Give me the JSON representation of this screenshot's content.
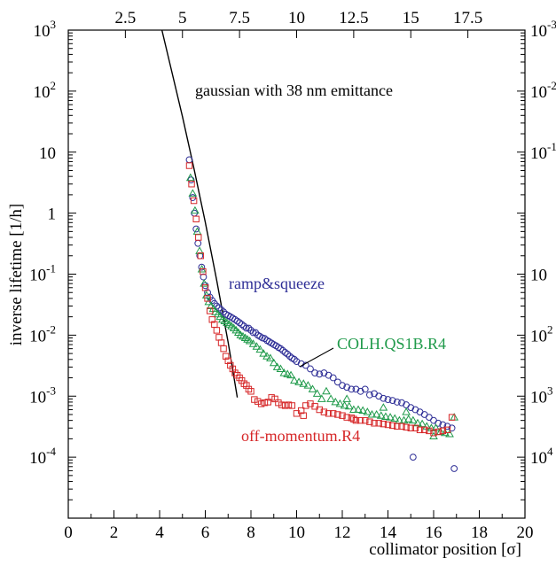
{
  "chart_data": {
    "type": "scatter",
    "xlabel": "collimator position [σ]",
    "ylabel": "inverse lifetime [1/h]",
    "x_range": [
      0,
      20
    ],
    "y_range": [
      1e-05,
      1000
    ],
    "y_scale": "log",
    "grid": false,
    "x_ticks": [
      "0",
      "2",
      "4",
      "6",
      "8",
      "10",
      "12",
      "14",
      "16",
      "18",
      "20"
    ],
    "x_tick_values": [
      0,
      2,
      4,
      6,
      8,
      10,
      12,
      14,
      16,
      18,
      20
    ],
    "y_tick_values": [
      1000,
      100,
      10,
      1,
      0.1,
      0.01,
      0.001,
      0.0001
    ],
    "y_ticks": [
      {
        "base": "10",
        "exp": "3"
      },
      {
        "base": "10",
        "exp": "2"
      },
      {
        "base": "10",
        "exp": ""
      },
      {
        "base": "1",
        "exp": ""
      },
      {
        "base": "10",
        "exp": "-1"
      },
      {
        "base": "10",
        "exp": "-2"
      },
      {
        "base": "10",
        "exp": "-3"
      },
      {
        "base": "10",
        "exp": "-4"
      }
    ],
    "top_ticks": [
      "2.5",
      "5",
      "7.5",
      "10",
      "12.5",
      "15",
      "17.5"
    ],
    "top_tick_values": [
      2.5,
      5,
      7.5,
      10,
      12.5,
      15,
      17.5
    ],
    "right_ticks": [
      {
        "base": "10",
        "exp": "-3"
      },
      {
        "base": "10",
        "exp": "-2"
      },
      {
        "base": "10",
        "exp": "-1"
      },
      {
        "base": "10",
        "exp": ""
      },
      {
        "base": "10",
        "exp": "2"
      },
      {
        "base": "10",
        "exp": "3"
      },
      {
        "base": "10",
        "exp": "4"
      }
    ],
    "right_tick_values": [
      1000,
      100,
      10,
      0.1,
      0.01,
      0.001,
      0.0001
    ],
    "annotations": {
      "gaussian": "gaussian with 38 nm emittance",
      "ramp": "ramp&squeeze",
      "colh": "COLH.QS1B.R4",
      "offm": "off-momentum.R4"
    },
    "gaussian_curve": [
      [
        4.1,
        1000
      ],
      [
        4.5,
        234
      ],
      [
        5.0,
        38
      ],
      [
        5.5,
        5.5
      ],
      [
        6.0,
        0.71
      ],
      [
        6.5,
        0.079
      ],
      [
        7.0,
        0.0076
      ],
      [
        7.4,
        0.00095
      ]
    ],
    "series": [
      {
        "marker": "circle",
        "color": "#2e2e96",
        "points": [
          [
            5.3,
            7.5
          ],
          [
            5.38,
            3.5
          ],
          [
            5.45,
            1.8
          ],
          [
            5.52,
            1.0
          ],
          [
            5.6,
            0.55
          ],
          [
            5.68,
            0.32
          ],
          [
            5.76,
            0.2
          ],
          [
            5.84,
            0.13
          ],
          [
            5.92,
            0.09
          ],
          [
            6.0,
            0.065
          ],
          [
            6.1,
            0.05
          ],
          [
            6.2,
            0.042
          ],
          [
            6.3,
            0.037
          ],
          [
            6.4,
            0.033
          ],
          [
            6.5,
            0.03
          ],
          [
            6.6,
            0.028
          ],
          [
            6.7,
            0.026
          ],
          [
            6.8,
            0.024
          ],
          [
            6.9,
            0.022
          ],
          [
            7.0,
            0.021
          ],
          [
            7.1,
            0.02
          ],
          [
            7.2,
            0.019
          ],
          [
            7.3,
            0.018
          ],
          [
            7.4,
            0.017
          ],
          [
            7.5,
            0.016
          ],
          [
            7.6,
            0.015
          ],
          [
            7.7,
            0.014
          ],
          [
            7.8,
            0.013
          ],
          [
            7.9,
            0.013
          ],
          [
            8.0,
            0.012
          ],
          [
            8.1,
            0.011
          ],
          [
            8.2,
            0.011
          ],
          [
            8.3,
            0.01
          ],
          [
            8.4,
            0.0095
          ],
          [
            8.5,
            0.009
          ],
          [
            8.6,
            0.0088
          ],
          [
            8.7,
            0.0082
          ],
          [
            8.8,
            0.0078
          ],
          [
            8.9,
            0.0074
          ],
          [
            9.0,
            0.007
          ],
          [
            9.1,
            0.0067
          ],
          [
            9.2,
            0.0063
          ],
          [
            9.3,
            0.006
          ],
          [
            9.4,
            0.0056
          ],
          [
            9.5,
            0.0052
          ],
          [
            9.6,
            0.0049
          ],
          [
            9.7,
            0.0045
          ],
          [
            9.8,
            0.0042
          ],
          [
            9.9,
            0.004
          ],
          [
            10.0,
            0.0037
          ],
          [
            10.2,
            0.0034
          ],
          [
            10.4,
            0.0032
          ],
          [
            10.6,
            0.0028
          ],
          [
            10.8,
            0.0024
          ],
          [
            11.0,
            0.0023
          ],
          [
            11.2,
            0.0024
          ],
          [
            11.4,
            0.0022
          ],
          [
            11.6,
            0.002
          ],
          [
            11.8,
            0.0017
          ],
          [
            12.0,
            0.0015
          ],
          [
            12.2,
            0.0014
          ],
          [
            12.4,
            0.0013
          ],
          [
            12.6,
            0.0013
          ],
          [
            12.8,
            0.0012
          ],
          [
            13.0,
            0.0013
          ],
          [
            13.2,
            0.00105
          ],
          [
            13.4,
            0.0011
          ],
          [
            13.6,
            0.001
          ],
          [
            13.8,
            0.00092
          ],
          [
            14.0,
            0.00088
          ],
          [
            14.2,
            0.00085
          ],
          [
            14.4,
            0.0008
          ],
          [
            14.6,
            0.00078
          ],
          [
            14.8,
            0.00072
          ],
          [
            15.0,
            0.00065
          ],
          [
            15.2,
            0.0006
          ],
          [
            15.4,
            0.00055
          ],
          [
            15.6,
            0.0005
          ],
          [
            15.8,
            0.00045
          ],
          [
            16.0,
            0.0004
          ],
          [
            16.2,
            0.00036
          ],
          [
            16.4,
            0.00034
          ],
          [
            16.6,
            0.00032
          ],
          [
            16.8,
            0.0003
          ],
          [
            15.1,
            0.0001
          ],
          [
            16.9,
            6.5e-05
          ]
        ]
      },
      {
        "marker": "triangle",
        "color": "#1f9a4a",
        "points": [
          [
            5.35,
            3.8
          ],
          [
            5.45,
            2.1
          ],
          [
            5.55,
            1.1
          ],
          [
            5.65,
            0.5
          ],
          [
            5.75,
            0.24
          ],
          [
            5.85,
            0.12
          ],
          [
            5.95,
            0.07
          ],
          [
            6.05,
            0.045
          ],
          [
            6.15,
            0.035
          ],
          [
            6.25,
            0.03
          ],
          [
            6.35,
            0.027
          ],
          [
            6.45,
            0.024
          ],
          [
            6.55,
            0.022
          ],
          [
            6.65,
            0.02
          ],
          [
            6.75,
            0.018
          ],
          [
            6.85,
            0.017
          ],
          [
            6.95,
            0.016
          ],
          [
            7.05,
            0.015
          ],
          [
            7.15,
            0.014
          ],
          [
            7.25,
            0.013
          ],
          [
            7.35,
            0.012
          ],
          [
            7.45,
            0.011
          ],
          [
            7.55,
            0.01
          ],
          [
            7.65,
            0.0095
          ],
          [
            7.75,
            0.009
          ],
          [
            7.85,
            0.0085
          ],
          [
            7.95,
            0.008
          ],
          [
            8.1,
            0.0072
          ],
          [
            8.25,
            0.0065
          ],
          [
            8.4,
            0.0058
          ],
          [
            8.55,
            0.005
          ],
          [
            8.7,
            0.0045
          ],
          [
            8.85,
            0.0042
          ],
          [
            9.0,
            0.0035
          ],
          [
            9.15,
            0.003
          ],
          [
            9.3,
            0.0028
          ],
          [
            9.45,
            0.0024
          ],
          [
            9.6,
            0.0023
          ],
          [
            9.75,
            0.0022
          ],
          [
            9.9,
            0.0018
          ],
          [
            10.1,
            0.0017
          ],
          [
            10.3,
            0.0016
          ],
          [
            10.5,
            0.0015
          ],
          [
            10.7,
            0.0013
          ],
          [
            10.9,
            0.0011
          ],
          [
            11.1,
            0.0009
          ],
          [
            11.3,
            0.0012
          ],
          [
            11.5,
            0.0009
          ],
          [
            11.7,
            0.0008
          ],
          [
            11.9,
            0.00075
          ],
          [
            12.1,
            0.0007
          ],
          [
            12.3,
            0.00068
          ],
          [
            12.5,
            0.0006
          ],
          [
            12.7,
            0.0006
          ],
          [
            12.9,
            0.00058
          ],
          [
            13.1,
            0.00055
          ],
          [
            13.3,
            0.0005
          ],
          [
            13.5,
            0.0005
          ],
          [
            13.7,
            0.00048
          ],
          [
            13.9,
            0.00046
          ],
          [
            14.1,
            0.00045
          ],
          [
            14.3,
            0.00043
          ],
          [
            14.5,
            0.0004
          ],
          [
            14.7,
            0.0004
          ],
          [
            14.9,
            0.00042
          ],
          [
            15.1,
            0.0004
          ],
          [
            15.3,
            0.00036
          ],
          [
            15.5,
            0.00035
          ],
          [
            15.7,
            0.00032
          ],
          [
            15.9,
            0.0003
          ],
          [
            16.1,
            0.0003
          ],
          [
            16.3,
            0.00026
          ],
          [
            16.5,
            0.00025
          ],
          [
            16.7,
            0.00024
          ],
          [
            16.9,
            0.00045
          ],
          [
            14.8,
            0.00055
          ],
          [
            13.8,
            0.00065
          ],
          [
            12.2,
            0.0009
          ],
          [
            16.0,
            0.00022
          ]
        ]
      },
      {
        "marker": "square",
        "color": "#d62728",
        "points": [
          [
            5.3,
            6.0
          ],
          [
            5.4,
            3.0
          ],
          [
            5.5,
            1.6
          ],
          [
            5.6,
            0.8
          ],
          [
            5.7,
            0.4
          ],
          [
            5.8,
            0.2
          ],
          [
            5.9,
            0.11
          ],
          [
            6.0,
            0.06
          ],
          [
            6.1,
            0.04
          ],
          [
            6.2,
            0.025
          ],
          [
            6.3,
            0.018
          ],
          [
            6.4,
            0.015
          ],
          [
            6.5,
            0.012
          ],
          [
            6.6,
            0.0092
          ],
          [
            6.7,
            0.0075
          ],
          [
            6.8,
            0.006
          ],
          [
            6.9,
            0.0045
          ],
          [
            7.0,
            0.0038
          ],
          [
            7.1,
            0.0032
          ],
          [
            7.2,
            0.0028
          ],
          [
            7.3,
            0.0024
          ],
          [
            7.4,
            0.0022
          ],
          [
            7.5,
            0.002
          ],
          [
            7.6,
            0.0018
          ],
          [
            7.7,
            0.0016
          ],
          [
            7.8,
            0.0015
          ],
          [
            7.9,
            0.0013
          ],
          [
            8.0,
            0.0012
          ],
          [
            8.15,
            0.00088
          ],
          [
            8.3,
            0.00082
          ],
          [
            8.45,
            0.00075
          ],
          [
            8.6,
            0.00078
          ],
          [
            8.75,
            0.0008
          ],
          [
            8.9,
            0.00095
          ],
          [
            9.05,
            0.0009
          ],
          [
            9.2,
            0.00078
          ],
          [
            9.35,
            0.00072
          ],
          [
            9.5,
            0.0007
          ],
          [
            9.65,
            0.00072
          ],
          [
            9.8,
            0.0007
          ],
          [
            10.0,
            0.00052
          ],
          [
            10.2,
            0.00058
          ],
          [
            10.4,
            0.0007
          ],
          [
            10.6,
            0.00075
          ],
          [
            10.8,
            0.00068
          ],
          [
            11.0,
            0.0006
          ],
          [
            11.2,
            0.00055
          ],
          [
            11.4,
            0.00052
          ],
          [
            11.6,
            0.00052
          ],
          [
            11.8,
            0.0005
          ],
          [
            12.0,
            0.00048
          ],
          [
            12.2,
            0.00045
          ],
          [
            12.4,
            0.00044
          ],
          [
            12.6,
            0.0004
          ],
          [
            12.8,
            0.0004
          ],
          [
            13.0,
            0.0004
          ],
          [
            13.2,
            0.00038
          ],
          [
            13.4,
            0.00036
          ],
          [
            13.6,
            0.00036
          ],
          [
            13.8,
            0.00035
          ],
          [
            14.0,
            0.00034
          ],
          [
            14.2,
            0.00033
          ],
          [
            14.4,
            0.00032
          ],
          [
            14.6,
            0.00032
          ],
          [
            14.8,
            0.00031
          ],
          [
            15.0,
            0.0003
          ],
          [
            15.2,
            0.0003
          ],
          [
            15.4,
            0.00028
          ],
          [
            15.6,
            0.00028
          ],
          [
            15.8,
            0.00027
          ],
          [
            16.0,
            0.00025
          ],
          [
            16.2,
            0.00026
          ],
          [
            16.4,
            0.00027
          ],
          [
            16.6,
            0.00028
          ],
          [
            16.8,
            0.00045
          ],
          [
            10.3,
            0.00048
          ],
          [
            12.5,
            0.00042
          ]
        ]
      }
    ]
  }
}
